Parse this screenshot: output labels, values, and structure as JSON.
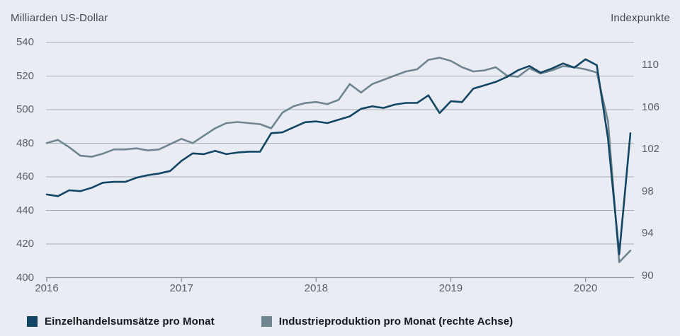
{
  "header": {
    "left_axis_title": "Milliarden US-Dollar",
    "right_axis_title": "Indexpunkte"
  },
  "chart_data": {
    "type": "line",
    "x_unit": "month",
    "x_start": "2016-01",
    "x_end": "2020-05",
    "x_tick_labels": [
      "2016",
      "2017",
      "2018",
      "2019",
      "2020"
    ],
    "x_tick_month_indices": [
      0,
      12,
      24,
      36,
      48
    ],
    "left_axis": {
      "label": "Milliarden US-Dollar",
      "ticks": [
        540,
        520,
        500,
        480,
        460,
        440,
        420,
        400
      ],
      "ylim": [
        400,
        540
      ]
    },
    "right_axis": {
      "label": "Indexpunkte",
      "ticks": [
        110,
        106,
        102,
        98,
        94,
        90
      ],
      "ylim": [
        89.83,
        112.15
      ]
    },
    "grid": true,
    "legend_position": "bottom",
    "series": [
      {
        "name": "Einzelhandelsumsätze pro Monat",
        "axis": "left",
        "color": "#134564",
        "values": [
          449.5,
          448.5,
          452.0,
          451.5,
          453.5,
          456.5,
          457.0,
          457.0,
          459.5,
          461.0,
          462.0,
          463.5,
          469.5,
          474.0,
          473.5,
          475.5,
          473.5,
          474.5,
          475.0,
          475.0,
          486.0,
          486.5,
          489.5,
          492.5,
          493.0,
          492.0,
          494.0,
          496.0,
          500.5,
          502.0,
          501.0,
          503.0,
          504.0,
          504.0,
          508.5,
          498.0,
          505.0,
          504.5,
          512.5,
          514.5,
          516.5,
          519.5,
          523.5,
          526.0,
          522.0,
          524.5,
          527.5,
          525.0,
          530.0,
          526.5,
          483.0,
          414.0,
          486.0
        ]
      },
      {
        "name": "Industrieproduktion pro Monat (rechte Achse)",
        "axis": "right",
        "color": "#6f8590",
        "values": [
          102.6,
          102.9,
          102.2,
          101.4,
          101.3,
          101.6,
          102.0,
          102.0,
          102.1,
          101.9,
          102.0,
          102.5,
          103.0,
          102.6,
          103.3,
          104.0,
          104.5,
          104.6,
          104.5,
          104.4,
          104.0,
          105.5,
          106.1,
          106.4,
          106.5,
          106.3,
          106.7,
          108.2,
          107.4,
          108.2,
          108.6,
          109.0,
          109.4,
          109.6,
          110.5,
          110.7,
          110.4,
          109.8,
          109.4,
          109.5,
          109.8,
          109.0,
          108.9,
          109.7,
          109.2,
          109.5,
          109.9,
          109.8,
          109.6,
          109.3,
          104.7,
          91.3,
          92.4
        ]
      }
    ]
  },
  "colors": {
    "background": "#e9edf3",
    "gridline": "#a9acb2",
    "axis_line": "#8f949b",
    "tick_text": "#5b5f65",
    "axis_title_text": "#44484e",
    "legend_text": "#14181d",
    "retail_line": "#134564",
    "industrial_line": "#6f8590"
  }
}
